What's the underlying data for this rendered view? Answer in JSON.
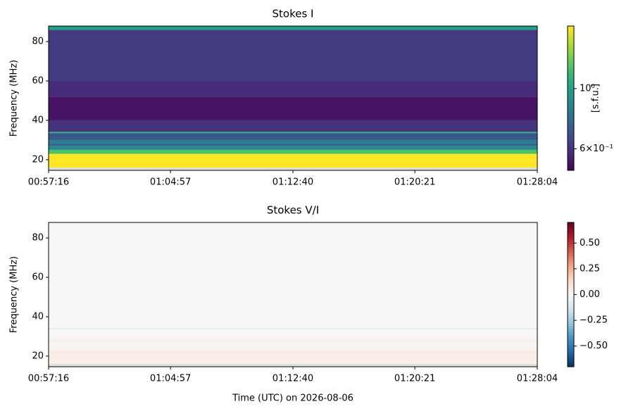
{
  "chart_data": [
    {
      "type": "heatmap",
      "title": "Stokes I",
      "ylabel": "Frequency (MHz)",
      "colorbar_label": "[s.f.u.]",
      "colormap": "viridis",
      "log_scale": true,
      "clim": [
        0.5,
        1.7
      ],
      "xlim": [
        3436,
        5284
      ],
      "xticks": [
        {
          "value": 3436,
          "label": "00:57:16"
        },
        {
          "value": 3897,
          "label": "01:04:57"
        },
        {
          "value": 4360,
          "label": "01:12:40"
        },
        {
          "value": 4821,
          "label": "01:20:21"
        },
        {
          "value": 5284,
          "label": "01:28:04"
        }
      ],
      "ylim": [
        14.6,
        87.9
      ],
      "yticks": [
        20,
        40,
        60,
        80
      ],
      "cticks": [
        {
          "value": 1,
          "label": "10⁰"
        },
        {
          "value": 0.6,
          "label": "6×10⁻¹"
        }
      ],
      "y_bins": [
        14.6,
        16,
        23,
        25,
        27,
        28.5,
        30,
        33.5,
        34.2,
        40,
        52,
        60,
        86,
        87.9
      ],
      "values": [
        null,
        1.7,
        1.2,
        0.9,
        0.75,
        0.85,
        0.7,
        1.1,
        0.6,
        0.53,
        0.58,
        0.62,
        1.0
      ]
    },
    {
      "type": "heatmap",
      "title": "Stokes V/I",
      "ylabel": "Frequency (MHz)",
      "xlabel": "Time (UTC) on 2026-08-06",
      "colormap": "RdBu_r",
      "log_scale": false,
      "clim": [
        -0.7,
        0.7
      ],
      "xlim": [
        3436,
        5284
      ],
      "xticks": [
        {
          "value": 3436,
          "label": "00:57:16"
        },
        {
          "value": 3897,
          "label": "01:04:57"
        },
        {
          "value": 4360,
          "label": "01:12:40"
        },
        {
          "value": 4821,
          "label": "01:20:21"
        },
        {
          "value": 5284,
          "label": "01:28:04"
        }
      ],
      "ylim": [
        14.6,
        87.9
      ],
      "yticks": [
        20,
        40,
        60,
        80
      ],
      "cticks": [
        {
          "value": 0.5,
          "label": "0.50"
        },
        {
          "value": 0.25,
          "label": "0.25"
        },
        {
          "value": 0,
          "label": "0.00"
        },
        {
          "value": -0.25,
          "label": "−0.25"
        },
        {
          "value": -0.5,
          "label": "−0.50"
        }
      ],
      "y_bins": [
        14.6,
        16,
        23,
        25,
        27,
        28.5,
        30,
        33.5,
        34.2,
        40,
        52,
        60,
        86,
        87.9
      ],
      "values": [
        null,
        0.05,
        0.02,
        0.0,
        0.03,
        0.01,
        0.0,
        -0.08,
        0.0,
        0.0,
        0.0,
        0.0,
        0.0
      ]
    }
  ]
}
